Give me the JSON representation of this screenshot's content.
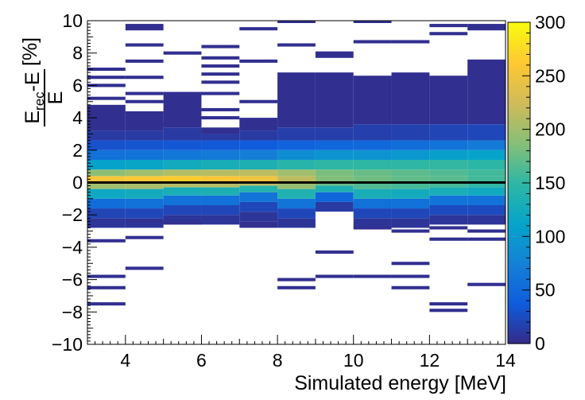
{
  "chart_data": {
    "type": "heatmap",
    "xlabel": "Simulated energy [MeV]",
    "ylabel": {
      "num_main": "E",
      "num_sub": "rec",
      "num_rest": "-E",
      "den": "E",
      "unit": "[%]"
    },
    "xlim": [
      3,
      14
    ],
    "ylim": [
      -10,
      10
    ],
    "zlim": [
      0,
      300
    ],
    "x_ticks": [
      "4",
      "6",
      "8",
      "10",
      "12",
      "14"
    ],
    "y_ticks": [
      "10",
      "8",
      "6",
      "4",
      "2",
      "0",
      "−2",
      "−4",
      "−6",
      "−8",
      "−10"
    ],
    "z_ticks": [
      "300",
      "250",
      "200",
      "150",
      "100",
      "50",
      "0"
    ],
    "x_bin_edges": [
      3,
      4,
      5,
      6,
      7,
      8,
      9,
      10,
      11,
      12,
      13,
      14
    ],
    "y_bin_width": 0.2,
    "reference_line_y": 0,
    "colormap": "kBird",
    "colormap_stops": [
      "#352a87",
      "#0f5cdd",
      "#1481d6",
      "#06a4ca",
      "#2eb7a4",
      "#87bf77",
      "#d1bb59",
      "#fec832",
      "#f9fb0e"
    ],
    "columns": [
      {
        "x": [
          3,
          4
        ],
        "core": [
          [
            -2.8,
            -2.2,
            8
          ],
          [
            -2.2,
            -1.6,
            20
          ],
          [
            -1.6,
            -1.0,
            55
          ],
          [
            -1.0,
            -0.4,
            120
          ],
          [
            -0.4,
            0.0,
            200
          ],
          [
            0.0,
            0.4,
            255
          ],
          [
            0.4,
            0.8,
            190
          ],
          [
            0.8,
            1.4,
            110
          ],
          [
            1.4,
            2.0,
            60
          ],
          [
            2.0,
            2.6,
            30
          ],
          [
            2.6,
            3.2,
            12
          ],
          [
            3.2,
            4.8,
            4
          ]
        ],
        "outliers": [
          [
            -7.6,
            -7.4
          ],
          [
            -6.6,
            -6.4
          ],
          [
            -5.9,
            -5.7
          ],
          [
            -3.7,
            -3.5
          ],
          [
            5.1,
            5.3
          ],
          [
            5.9,
            6.1
          ],
          [
            6.4,
            6.6
          ],
          [
            6.9,
            7.1
          ]
        ]
      },
      {
        "x": [
          4,
          5
        ],
        "core": [
          [
            -2.8,
            -2.2,
            8
          ],
          [
            -2.2,
            -1.6,
            22
          ],
          [
            -1.6,
            -1.0,
            58
          ],
          [
            -1.0,
            -0.4,
            125
          ],
          [
            -0.4,
            0.0,
            205
          ],
          [
            0.0,
            0.4,
            262
          ],
          [
            0.4,
            0.8,
            200
          ],
          [
            0.8,
            1.4,
            115
          ],
          [
            1.4,
            2.0,
            62
          ],
          [
            2.0,
            2.6,
            32
          ],
          [
            2.6,
            3.2,
            12
          ],
          [
            3.2,
            4.4,
            4
          ]
        ],
        "outliers": [
          [
            -5.4,
            -5.2
          ],
          [
            -3.5,
            -3.3
          ],
          [
            -2.5,
            -2.3
          ],
          [
            4.9,
            5.1
          ],
          [
            5.4,
            5.6
          ],
          [
            6.4,
            6.6
          ],
          [
            7.4,
            7.6
          ],
          [
            8.4,
            8.6
          ],
          [
            9.4,
            9.8
          ]
        ]
      },
      {
        "x": [
          5,
          6
        ],
        "core": [
          [
            -2.6,
            -2.0,
            8
          ],
          [
            -2.0,
            -1.4,
            22
          ],
          [
            -1.4,
            -0.8,
            60
          ],
          [
            -0.8,
            -0.3,
            130
          ],
          [
            -0.3,
            0.0,
            210
          ],
          [
            0.0,
            0.4,
            266
          ],
          [
            0.4,
            0.8,
            210
          ],
          [
            0.8,
            1.4,
            125
          ],
          [
            1.4,
            2.0,
            65
          ],
          [
            2.0,
            2.6,
            34
          ],
          [
            2.6,
            3.4,
            12
          ],
          [
            3.4,
            5.6,
            4
          ]
        ],
        "outliers": [
          [
            -2.6,
            -2.4
          ],
          [
            3.5,
            3.7
          ],
          [
            7.9,
            8.1
          ]
        ]
      },
      {
        "x": [
          6,
          7
        ],
        "core": [
          [
            -2.6,
            -2.0,
            8
          ],
          [
            -2.0,
            -1.4,
            22
          ],
          [
            -1.4,
            -0.8,
            60
          ],
          [
            -0.8,
            -0.3,
            135
          ],
          [
            -0.3,
            0.0,
            212
          ],
          [
            0.0,
            0.4,
            258
          ],
          [
            0.4,
            0.8,
            212
          ],
          [
            0.8,
            1.4,
            130
          ],
          [
            1.4,
            2.0,
            68
          ],
          [
            2.0,
            2.6,
            35
          ],
          [
            2.6,
            3.0,
            12
          ],
          [
            3.0,
            3.4,
            4
          ]
        ],
        "outliers": [
          [
            3.9,
            4.1
          ],
          [
            4.4,
            4.6
          ],
          [
            5.4,
            5.6
          ],
          [
            6.1,
            6.3
          ],
          [
            6.6,
            6.8
          ],
          [
            7.1,
            7.3
          ],
          [
            7.6,
            7.8
          ],
          [
            8.3,
            8.5
          ]
        ]
      },
      {
        "x": [
          7,
          8
        ],
        "core": [
          [
            -2.4,
            -1.8,
            8
          ],
          [
            -1.8,
            -1.2,
            22
          ],
          [
            -1.2,
            -0.6,
            62
          ],
          [
            -0.6,
            -0.2,
            140
          ],
          [
            -0.2,
            0.0,
            212
          ],
          [
            0.0,
            0.4,
            250
          ],
          [
            0.4,
            0.8,
            215
          ],
          [
            0.8,
            1.4,
            135
          ],
          [
            1.4,
            2.0,
            72
          ],
          [
            2.0,
            2.6,
            38
          ],
          [
            2.6,
            3.2,
            12
          ],
          [
            3.2,
            4.0,
            4
          ]
        ],
        "outliers": [
          [
            -2.8,
            -2.4
          ],
          [
            4.9,
            5.1
          ],
          [
            7.4,
            7.6
          ],
          [
            9.4,
            9.6
          ]
        ]
      },
      {
        "x": [
          8,
          9
        ],
        "core": [
          [
            -2.8,
            -2.2,
            8
          ],
          [
            -2.2,
            -1.6,
            22
          ],
          [
            -1.6,
            -1.0,
            62
          ],
          [
            -1.0,
            -0.4,
            138
          ],
          [
            -0.4,
            0.0,
            195
          ],
          [
            0.0,
            0.4,
            215
          ],
          [
            0.4,
            0.8,
            200
          ],
          [
            0.8,
            1.4,
            145
          ],
          [
            1.4,
            2.0,
            88
          ],
          [
            2.0,
            2.6,
            45
          ],
          [
            2.6,
            3.4,
            15
          ],
          [
            3.4,
            6.8,
            4
          ]
        ],
        "outliers": [
          [
            -6.6,
            -6.4
          ],
          [
            -6.1,
            -5.9
          ],
          [
            8.4,
            8.6
          ],
          [
            9.9,
            10.0
          ]
        ]
      },
      {
        "x": [
          9,
          10
        ],
        "core": [
          [
            -1.8,
            -1.2,
            12
          ],
          [
            -1.2,
            -0.6,
            48
          ],
          [
            -0.6,
            -0.2,
            135
          ],
          [
            -0.2,
            0.0,
            175
          ],
          [
            0.0,
            0.4,
            185
          ],
          [
            0.4,
            0.8,
            182
          ],
          [
            0.8,
            1.4,
            150
          ],
          [
            1.4,
            2.0,
            95
          ],
          [
            2.0,
            2.6,
            48
          ],
          [
            2.6,
            3.4,
            15
          ],
          [
            3.4,
            6.8,
            4
          ]
        ],
        "outliers": [
          [
            -5.9,
            -5.7
          ],
          [
            -4.4,
            -4.2
          ],
          [
            7.7,
            8.1
          ]
        ]
      },
      {
        "x": [
          10,
          11
        ],
        "core": [
          [
            -2.8,
            -2.2,
            8
          ],
          [
            -2.2,
            -1.6,
            22
          ],
          [
            -1.6,
            -1.0,
            58
          ],
          [
            -1.0,
            -0.4,
            130
          ],
          [
            -0.4,
            0.0,
            165
          ],
          [
            0.0,
            0.4,
            178
          ],
          [
            0.4,
            0.8,
            175
          ],
          [
            0.8,
            1.4,
            150
          ],
          [
            1.4,
            2.0,
            95
          ],
          [
            2.0,
            2.6,
            50
          ],
          [
            2.6,
            3.6,
            16
          ],
          [
            3.6,
            6.6,
            4
          ]
        ],
        "outliers": [
          [
            -5.9,
            -5.7
          ],
          [
            -2.9,
            -2.7
          ],
          [
            8.6,
            8.8
          ],
          [
            9.9,
            10.0
          ]
        ]
      },
      {
        "x": [
          11,
          12
        ],
        "core": [
          [
            -2.8,
            -2.2,
            8
          ],
          [
            -2.2,
            -1.6,
            22
          ],
          [
            -1.6,
            -1.0,
            58
          ],
          [
            -1.0,
            -0.4,
            125
          ],
          [
            -0.4,
            0.0,
            160
          ],
          [
            0.0,
            0.4,
            172
          ],
          [
            0.4,
            0.8,
            170
          ],
          [
            0.8,
            1.4,
            150
          ],
          [
            1.4,
            2.0,
            100
          ],
          [
            2.0,
            2.6,
            55
          ],
          [
            2.6,
            3.6,
            18
          ],
          [
            3.6,
            6.8,
            4
          ]
        ],
        "outliers": [
          [
            -6.6,
            -6.4
          ],
          [
            -5.9,
            -5.7
          ],
          [
            -5.1,
            -4.9
          ],
          [
            -3.1,
            -2.9
          ],
          [
            8.6,
            8.8
          ]
        ]
      },
      {
        "x": [
          12,
          13
        ],
        "core": [
          [
            -2.6,
            -2.0,
            8
          ],
          [
            -2.0,
            -1.4,
            25
          ],
          [
            -1.4,
            -0.8,
            62
          ],
          [
            -0.8,
            -0.3,
            130
          ],
          [
            -0.3,
            0.0,
            160
          ],
          [
            0.0,
            0.4,
            168
          ],
          [
            0.4,
            0.8,
            165
          ],
          [
            0.8,
            1.4,
            152
          ],
          [
            1.4,
            2.0,
            108
          ],
          [
            2.0,
            2.6,
            62
          ],
          [
            2.6,
            3.6,
            20
          ],
          [
            3.6,
            6.6,
            4
          ]
        ],
        "outliers": [
          [
            -8.0,
            -7.8
          ],
          [
            -7.6,
            -7.4
          ],
          [
            -3.6,
            -3.4
          ],
          [
            -2.9,
            -2.7
          ],
          [
            9.1,
            9.3
          ],
          [
            9.6,
            9.8
          ]
        ]
      },
      {
        "x": [
          13,
          14
        ],
        "core": [
          [
            -2.6,
            -2.0,
            8
          ],
          [
            -2.0,
            -1.4,
            25
          ],
          [
            -1.4,
            -0.8,
            60
          ],
          [
            -0.8,
            -0.3,
            122
          ],
          [
            -0.3,
            0.0,
            150
          ],
          [
            0.0,
            0.4,
            158
          ],
          [
            0.4,
            0.8,
            158
          ],
          [
            0.8,
            1.4,
            148
          ],
          [
            1.4,
            2.0,
            112
          ],
          [
            2.0,
            2.6,
            68
          ],
          [
            2.6,
            3.6,
            22
          ],
          [
            3.6,
            7.6,
            4
          ]
        ],
        "outliers": [
          [
            -6.4,
            -6.2
          ],
          [
            -3.6,
            -3.4
          ],
          [
            -3.1,
            -2.9
          ],
          [
            9.4,
            9.8
          ]
        ]
      }
    ]
  }
}
